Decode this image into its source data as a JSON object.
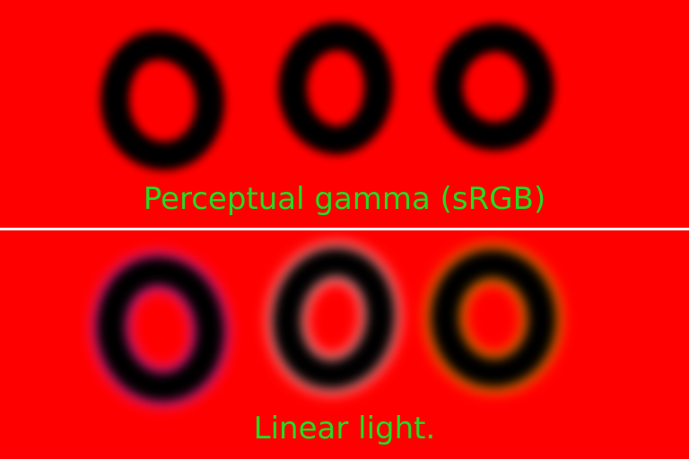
{
  "top_panel": {
    "caption": "Perceptual gamma (sRGB)",
    "rings": [
      {
        "color": "#0000ff"
      },
      {
        "color": "#00ffff"
      },
      {
        "color": "#00ff00"
      }
    ]
  },
  "bottom_panel": {
    "caption": "Linear light.",
    "rings": [
      {
        "color": "#2d17ff"
      },
      {
        "color": "#3ff3f3"
      },
      {
        "color": "#11ff00"
      }
    ]
  },
  "colors": {
    "background": "#ff0000",
    "caption": "#22dd22",
    "divider": "#ffffff"
  }
}
